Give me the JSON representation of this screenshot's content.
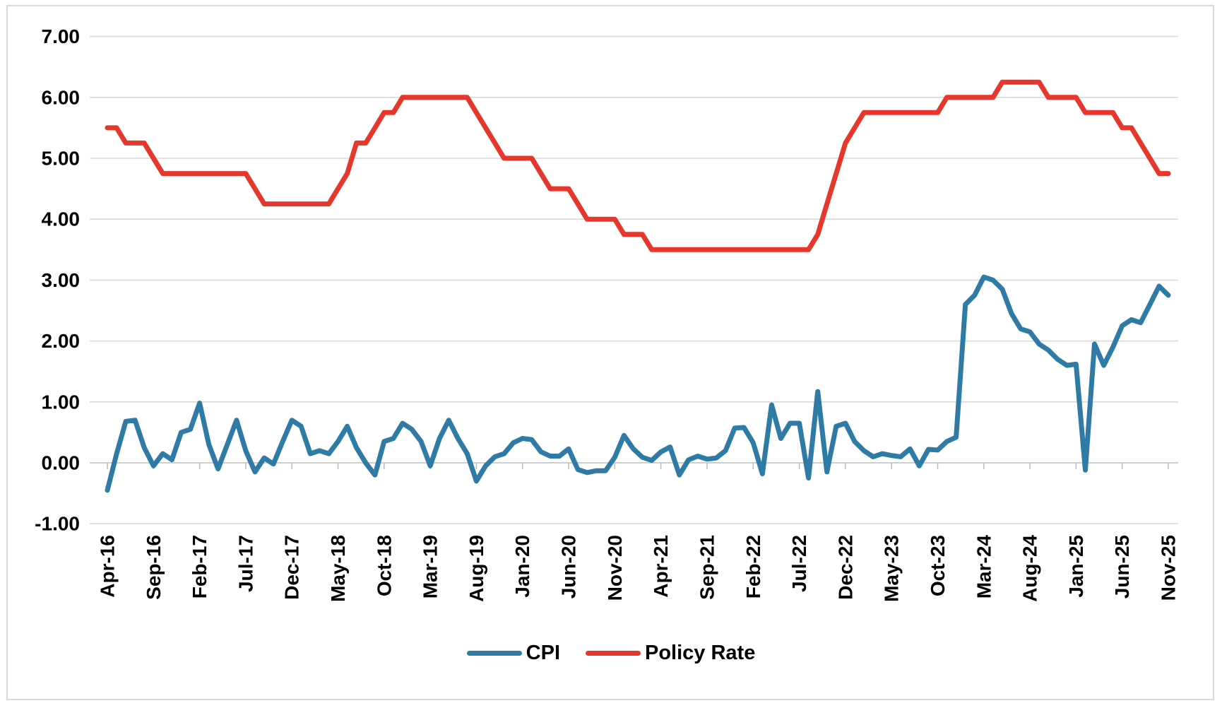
{
  "chart_data": {
    "type": "line",
    "title": "",
    "x_start": "Apr-16",
    "x_end": "Nov-25",
    "x_frequency": "monthly",
    "n_points": 116,
    "x_tick_labels": [
      "Apr-16",
      "Sep-16",
      "Feb-17",
      "Jul-17",
      "Dec-17",
      "May-18",
      "Oct-18",
      "Mar-19",
      "Aug-19",
      "Jan-20",
      "Jun-20",
      "Nov-20",
      "Apr-21",
      "Sep-21",
      "Feb-22",
      "Jul-22",
      "Dec-22",
      "May-23",
      "Oct-23",
      "Mar-24",
      "Aug-24",
      "Jan-25",
      "Jun-25",
      "Nov-25"
    ],
    "x_ticks_every_n_months": 5,
    "y_axis": {
      "min": -1.0,
      "max": 7.0,
      "step": 1.0,
      "tick_labels": [
        "7.00",
        "6.00",
        "5.00",
        "4.00",
        "3.00",
        "2.00",
        "1.00",
        "0.00",
        "-1.00"
      ],
      "grid": true,
      "grid_color": "#d9d9d9",
      "axis_color": "#bfbfbf"
    },
    "legend_position": "bottom",
    "series": [
      {
        "name": "CPI",
        "color": "#2F7BA6",
        "values": [
          -0.45,
          0.15,
          0.68,
          0.7,
          0.25,
          -0.05,
          0.15,
          0.05,
          0.5,
          0.55,
          0.98,
          0.3,
          -0.1,
          0.3,
          0.7,
          0.2,
          -0.15,
          0.08,
          -0.02,
          0.35,
          0.7,
          0.6,
          0.15,
          0.2,
          0.15,
          0.35,
          0.6,
          0.25,
          0.0,
          -0.2,
          0.35,
          0.4,
          0.65,
          0.55,
          0.35,
          -0.05,
          0.4,
          0.7,
          0.4,
          0.15,
          -0.3,
          -0.05,
          0.1,
          0.15,
          0.33,
          0.4,
          0.38,
          0.18,
          0.11,
          0.11,
          0.23,
          -0.11,
          -0.16,
          -0.13,
          -0.13,
          0.09,
          0.45,
          0.23,
          0.09,
          0.04,
          0.18,
          0.26,
          -0.2,
          0.05,
          0.11,
          0.06,
          0.08,
          0.2,
          0.57,
          0.58,
          0.33,
          -0.18,
          0.95,
          0.4,
          0.65,
          0.65,
          -0.25,
          1.17,
          -0.15,
          0.6,
          0.65,
          0.35,
          0.2,
          0.1,
          0.15,
          0.12,
          0.1,
          0.23,
          -0.05,
          0.22,
          0.21,
          0.35,
          0.42,
          2.6,
          2.75,
          3.05,
          3.0,
          2.85,
          2.45,
          2.2,
          2.15,
          1.95,
          1.85,
          1.7,
          1.6,
          1.62,
          -0.12,
          1.95,
          1.6,
          1.9,
          2.25,
          2.35,
          2.3,
          2.6,
          2.9,
          2.75
        ]
      },
      {
        "name": "Policy Rate",
        "color": "#E5372B",
        "values": [
          5.5,
          5.5,
          5.25,
          5.25,
          5.25,
          5.0,
          4.75,
          4.75,
          4.75,
          4.75,
          4.75,
          4.75,
          4.75,
          4.75,
          4.75,
          4.75,
          4.5,
          4.25,
          4.25,
          4.25,
          4.25,
          4.25,
          4.25,
          4.25,
          4.25,
          4.5,
          4.75,
          5.25,
          5.25,
          5.5,
          5.75,
          5.75,
          6.0,
          6.0,
          6.0,
          6.0,
          6.0,
          6.0,
          6.0,
          6.0,
          5.75,
          5.5,
          5.25,
          5.0,
          5.0,
          5.0,
          5.0,
          4.75,
          4.5,
          4.5,
          4.5,
          4.25,
          4.0,
          4.0,
          4.0,
          4.0,
          3.75,
          3.75,
          3.75,
          3.5,
          3.5,
          3.5,
          3.5,
          3.5,
          3.5,
          3.5,
          3.5,
          3.5,
          3.5,
          3.5,
          3.5,
          3.5,
          3.5,
          3.5,
          3.5,
          3.5,
          3.5,
          3.75,
          4.25,
          4.75,
          5.25,
          5.5,
          5.75,
          5.75,
          5.75,
          5.75,
          5.75,
          5.75,
          5.75,
          5.75,
          5.75,
          6.0,
          6.0,
          6.0,
          6.0,
          6.0,
          6.0,
          6.25,
          6.25,
          6.25,
          6.25,
          6.25,
          6.0,
          6.0,
          6.0,
          6.0,
          5.75,
          5.75,
          5.75,
          5.75,
          5.5,
          5.5,
          5.25,
          5.0,
          4.75,
          4.75
        ]
      }
    ]
  }
}
